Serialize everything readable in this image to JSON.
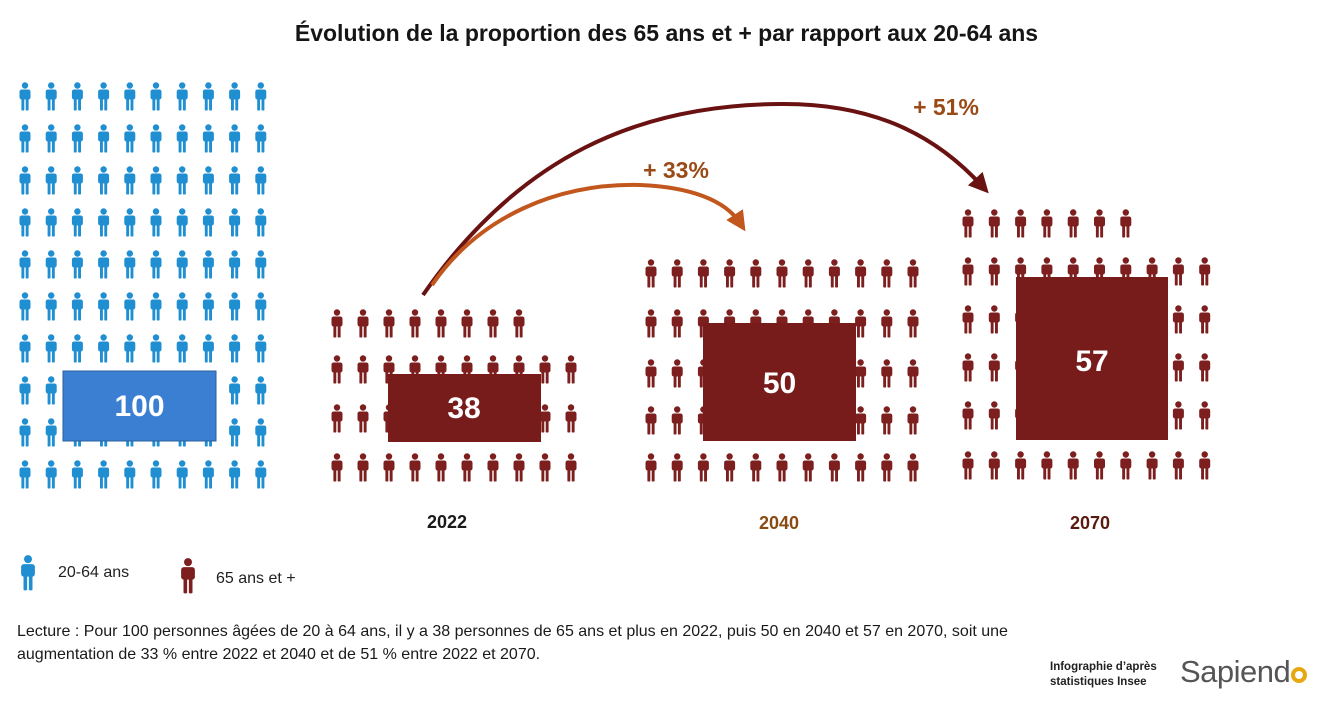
{
  "title": "Évolution de la proportion des 65 ans et + par rapport aux 20-64 ans",
  "colors": {
    "adults": "#1f8fd2",
    "seniors": "#7d1f1f",
    "value_box_adults": "#3b7fd2",
    "value_box_seniors": "#771b1b",
    "arrow_33": "#c2571d",
    "arrow_51": "#6a1212",
    "label_2040": "#8a4a12",
    "label_2070": "#5a1a10"
  },
  "chart_data": {
    "type": "bar",
    "title": "Évolution de la proportion des 65 ans et + par rapport aux 20-64 ans",
    "xlabel": "",
    "ylabel": "",
    "categories": [
      "2022",
      "2040",
      "2070"
    ],
    "base": {
      "name": "20-64 ans",
      "value": 100,
      "label": "100"
    },
    "series": [
      {
        "name": "65 ans et +",
        "values": [
          38,
          50,
          57
        ]
      }
    ],
    "value_labels": [
      "38",
      "50",
      "57"
    ],
    "annotations": [
      {
        "from": "2022",
        "to": "2040",
        "text": "+ 33%"
      },
      {
        "from": "2022",
        "to": "2070",
        "text": "+ 51%"
      }
    ]
  },
  "legend": {
    "adults": {
      "label": "20-64 ans",
      "icon": "person-icon"
    },
    "seniors": {
      "label": "65 ans et +",
      "icon": "person-icon"
    }
  },
  "note": "Lecture : Pour 100 personnes âgées de 20 à 64 ans, il y a 38 personnes de 65 ans et plus en 2022, puis 50 en 2040 et 57 en 2070, soit une augmentation de  33 % entre 2022 et 2040 et de 51 % entre 2022 et 2070.",
  "credit": {
    "line1": "Infographie d’après",
    "line2": "statistiques Insee"
  },
  "logo": {
    "text": "Sapiend",
    "ring": "o"
  }
}
